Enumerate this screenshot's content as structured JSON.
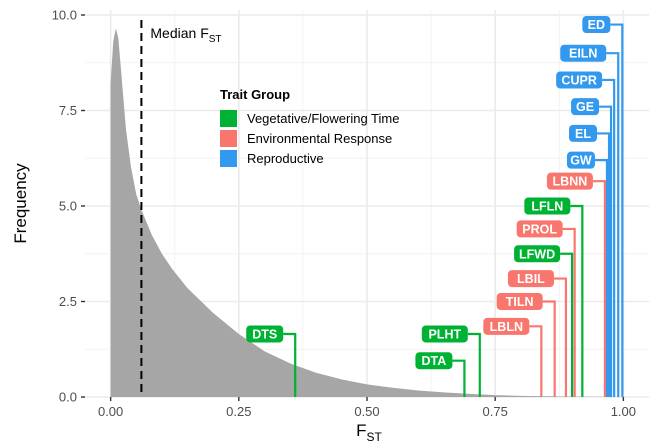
{
  "chart_data": {
    "type": "area",
    "xlabel": "F",
    "xlabel_sub": "ST",
    "ylabel": "Frequency",
    "xlim": [
      -0.05,
      1.05
    ],
    "ylim": [
      0,
      10
    ],
    "x_ticks": [
      0.0,
      0.25,
      0.5,
      0.75,
      1.0
    ],
    "x_tick_labels": [
      "0.00",
      "0.25",
      "0.50",
      "0.75",
      "1.00"
    ],
    "y_ticks": [
      0.0,
      2.5,
      5.0,
      7.5,
      10.0
    ],
    "y_tick_labels": [
      "0.0",
      "2.5",
      "5.0",
      "7.5",
      "10.0"
    ],
    "grid": true,
    "density": {
      "x": [
        0.0,
        0.005,
        0.01,
        0.015,
        0.02,
        0.03,
        0.04,
        0.05,
        0.06,
        0.08,
        0.1,
        0.12,
        0.15,
        0.2,
        0.25,
        0.3,
        0.35,
        0.4,
        0.45,
        0.5,
        0.55,
        0.6,
        0.65,
        0.7,
        0.75,
        0.8,
        0.85,
        0.9,
        0.95,
        1.0
      ],
      "y": [
        8.2,
        9.3,
        9.65,
        9.4,
        8.6,
        7.0,
        6.0,
        5.3,
        4.9,
        4.25,
        3.75,
        3.35,
        2.85,
        2.2,
        1.65,
        1.2,
        0.88,
        0.64,
        0.46,
        0.33,
        0.24,
        0.17,
        0.12,
        0.08,
        0.05,
        0.03,
        0.02,
        0.01,
        0.005,
        0.0
      ],
      "color": "#a6a6a6"
    },
    "median": {
      "x": 0.06,
      "label": "Median F",
      "label_sub": "ST"
    },
    "legend": {
      "title": "Trait Group",
      "position": "top-center",
      "items": [
        {
          "key": "veg",
          "label": "Vegetative/Flowering Time",
          "color": "#00b233"
        },
        {
          "key": "env",
          "label": "Environmental Response",
          "color": "#f8766d"
        },
        {
          "key": "rep",
          "label": "Reproductive",
          "color": "#3399ee"
        }
      ]
    },
    "traits": [
      {
        "label": "ED",
        "group": "rep",
        "fst": 0.998,
        "label_y": 9.75
      },
      {
        "label": "EILN",
        "group": "rep",
        "fst": 0.99,
        "label_y": 9.0
      },
      {
        "label": "CUPR",
        "group": "rep",
        "fst": 0.982,
        "label_y": 8.3
      },
      {
        "label": "GE",
        "group": "rep",
        "fst": 0.976,
        "label_y": 7.6
      },
      {
        "label": "EL",
        "group": "rep",
        "fst": 0.972,
        "label_y": 6.9
      },
      {
        "label": "GW",
        "group": "rep",
        "fst": 0.968,
        "label_y": 6.2
      },
      {
        "label": "LBNN",
        "group": "env",
        "fst": 0.964,
        "label_y": 5.65
      },
      {
        "label": "LFLN",
        "group": "veg",
        "fst": 0.92,
        "label_y": 5.0
      },
      {
        "label": "PROL",
        "group": "env",
        "fst": 0.905,
        "label_y": 4.4
      },
      {
        "label": "LFWD",
        "group": "veg",
        "fst": 0.9,
        "label_y": 3.75
      },
      {
        "label": "LBIL",
        "group": "env",
        "fst": 0.888,
        "label_y": 3.1
      },
      {
        "label": "TILN",
        "group": "env",
        "fst": 0.866,
        "label_y": 2.5
      },
      {
        "label": "LBLN",
        "group": "env",
        "fst": 0.84,
        "label_y": 1.85
      },
      {
        "label": "PLHT",
        "group": "veg",
        "fst": 0.72,
        "label_y": 1.65
      },
      {
        "label": "DTA",
        "group": "veg",
        "fst": 0.69,
        "label_y": 0.95
      },
      {
        "label": "DTS",
        "group": "veg",
        "fst": 0.36,
        "label_y": 1.65
      }
    ]
  }
}
